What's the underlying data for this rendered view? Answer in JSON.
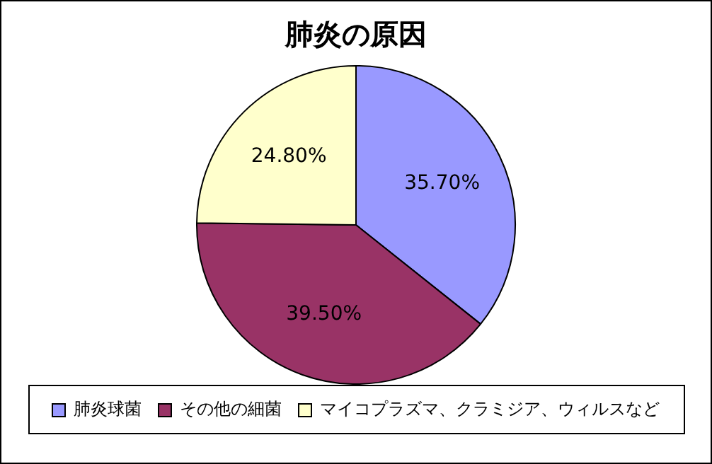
{
  "chart_data": {
    "type": "pie",
    "title": "肺炎の原因",
    "categories": [
      "肺炎球菌",
      "その他の細菌",
      "マイコプラズマ、クラミジア、ウィルスなど"
    ],
    "values": [
      35.7,
      39.5,
      24.8
    ],
    "colors": [
      "#9999ff",
      "#993366",
      "#ffffcc"
    ],
    "value_labels": [
      "35.70%",
      "39.50%",
      "24.80%"
    ],
    "legend": "bottom"
  }
}
